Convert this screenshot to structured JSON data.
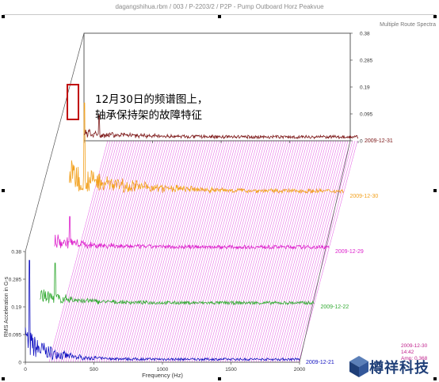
{
  "window": {
    "title": "dagangshihua.rbm / 003 / P-2203/2 / P2P - Pump Outboard Horz Peakvue"
  },
  "annotation": {
    "line1": "12月30日的频谱图上，",
    "line2": "轴承保持架的故障特征"
  },
  "logo": {
    "text": "樽祥科技"
  },
  "chart_data": {
    "type": "line",
    "subtype": "waterfall",
    "corner_label": "Multiple Route Spectra",
    "xlabel": "Frequency (Hz)",
    "ylabel": "RMS Acceleration in G-s",
    "xlim": [
      0,
      2000
    ],
    "ylim": [
      0,
      0.38
    ],
    "x_ticks": [
      0,
      500,
      1000,
      1500,
      2000
    ],
    "y_ticks": [
      0,
      0.095,
      0.19,
      0.285,
      0.38
    ],
    "y_tick_labels": [
      "0",
      "0.095",
      "0.19",
      "0.285",
      "0.38"
    ],
    "grid": false,
    "series": [
      {
        "name": "2009-12-21",
        "color": "#1010c0",
        "peak_freq": 30,
        "peak_value": 0.35,
        "noise_floor": 0.006,
        "noise_decay_hz": 180
      },
      {
        "name": "2009-12-22",
        "color": "#33aa33",
        "peak_freq": 110,
        "peak_value": 0.15,
        "noise_floor": 0.008,
        "noise_decay_hz": 250
      },
      {
        "name": "2009-12-29",
        "color": "#dd22cc",
        "peak_freq": 110,
        "peak_value": 0.12,
        "noise_floor": 0.009,
        "noise_decay_hz": 260
      },
      {
        "name": "2009-12-30",
        "color": "#f2a01c",
        "peak_freq": 110,
        "peak_value": 0.32,
        "noise_floor": 0.01,
        "noise_decay_hz": 400
      },
      {
        "name": "2009-12-31",
        "color": "#7a1414",
        "peak_freq": 110,
        "peak_value": 0.09,
        "noise_floor": 0.008,
        "noise_decay_hz": 300
      }
    ],
    "cursor": {
      "date": "2009-12-30",
      "time": "14:42",
      "amplitude": "Amp: 0.368"
    },
    "highlight_color": "#e040e0"
  }
}
